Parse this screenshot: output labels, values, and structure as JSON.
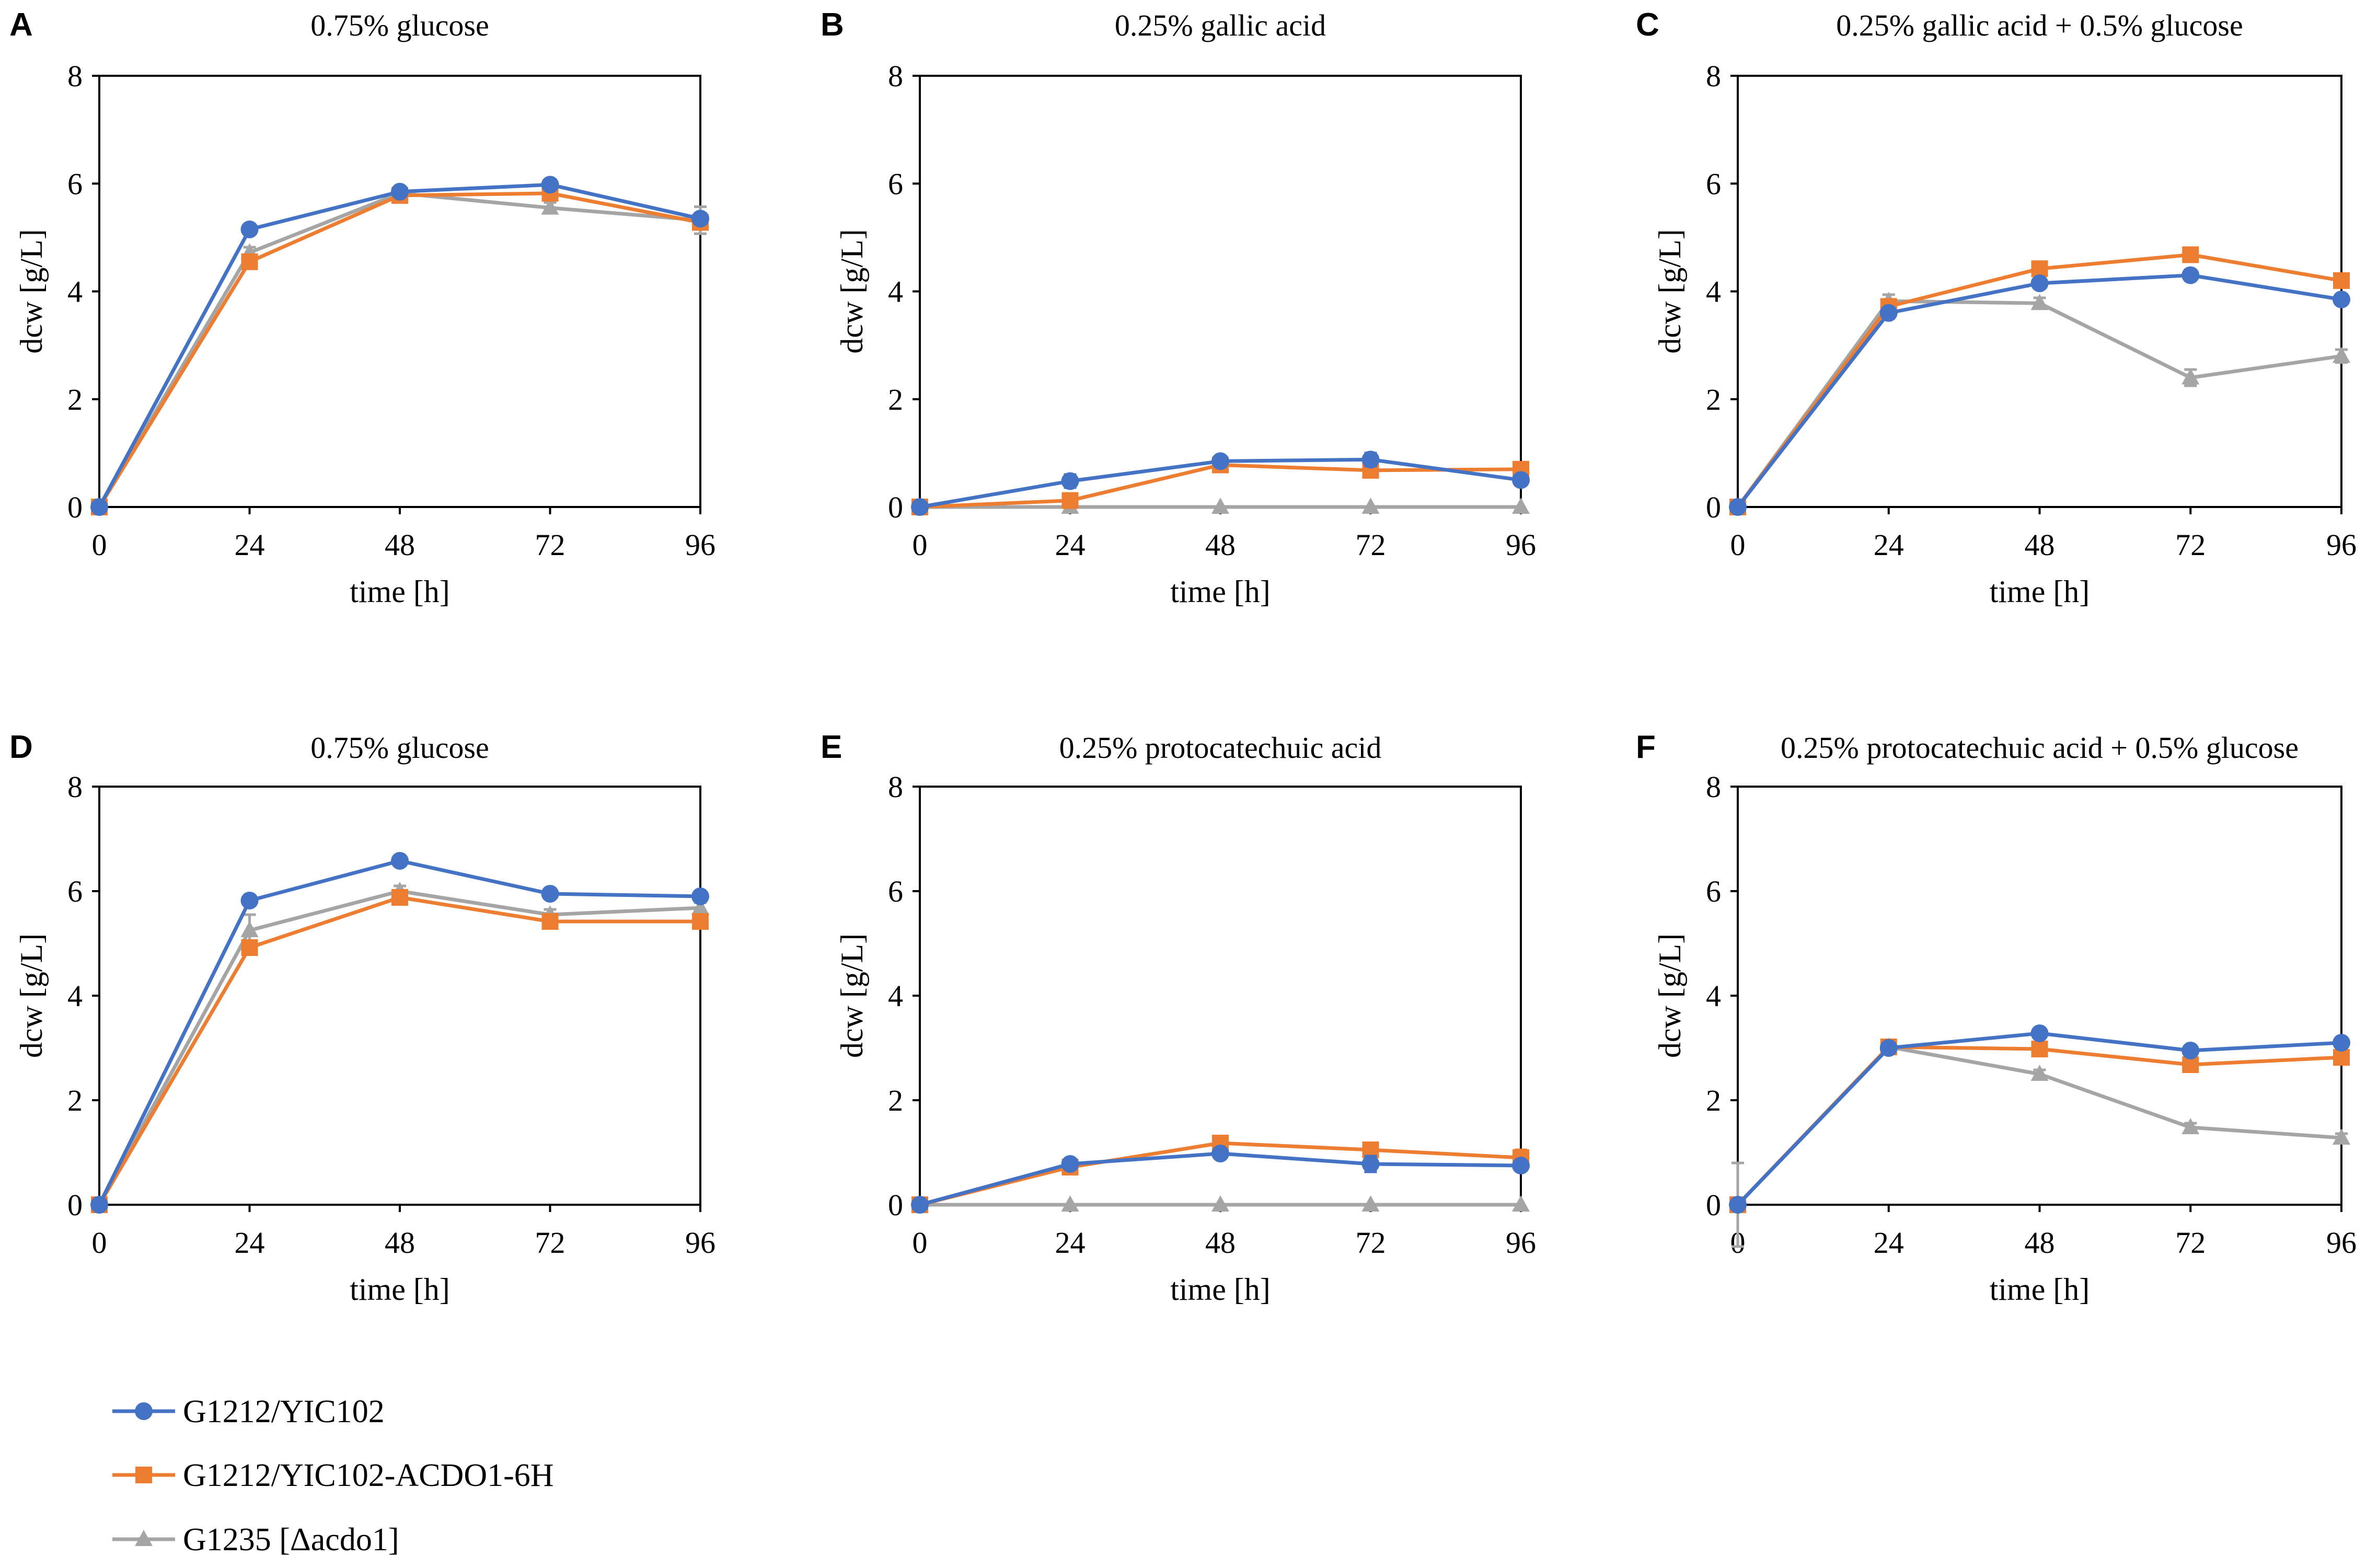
{
  "series_styles": [
    {
      "name": "G1212/YIC102",
      "color": "#4472C4",
      "marker": "circle"
    },
    {
      "name": "G1212/YIC102-ACDO1-6H",
      "color": "#ED7D31",
      "marker": "square"
    },
    {
      "name": "G1235 [Δacdo1]",
      "color": "#A5A5A5",
      "marker": "triangle"
    }
  ],
  "chart_data": [
    {
      "type": "line",
      "panel": "A",
      "title": "0.75% glucose",
      "xlabel": "time [h]",
      "ylabel": "dcw [g/L]",
      "x": [
        0,
        24,
        48,
        72,
        96
      ],
      "xticks": [
        0,
        24,
        48,
        72,
        96
      ],
      "ylim": [
        0,
        8
      ],
      "yticks": [
        0,
        2,
        4,
        6,
        8
      ],
      "series": [
        {
          "name": "G1212/YIC102",
          "values": [
            0,
            5.15,
            5.85,
            5.98,
            5.35
          ],
          "errors": [
            0,
            0.05,
            0.08,
            0.08,
            0.1
          ]
        },
        {
          "name": "G1212/YIC102-ACDO1-6H",
          "values": [
            0,
            4.55,
            5.78,
            5.82,
            5.28
          ],
          "errors": [
            0,
            0.08,
            0.08,
            0.12,
            0.1
          ]
        },
        {
          "name": "G1235 [Δacdo1]",
          "values": [
            0,
            4.72,
            5.82,
            5.55,
            5.32
          ],
          "errors": [
            0,
            0.1,
            0.08,
            0.1,
            0.25
          ]
        }
      ]
    },
    {
      "type": "line",
      "panel": "B",
      "title": "0.25% gallic acid",
      "xlabel": "time [h]",
      "ylabel": "dcw [g/L]",
      "x": [
        0,
        24,
        48,
        72,
        96
      ],
      "xticks": [
        0,
        24,
        48,
        72,
        96
      ],
      "ylim": [
        0,
        8
      ],
      "yticks": [
        0,
        2,
        4,
        6,
        8
      ],
      "series": [
        {
          "name": "G1212/YIC102",
          "values": [
            0,
            0.48,
            0.85,
            0.88,
            0.5
          ],
          "errors": [
            0,
            0.12,
            0.08,
            0.12,
            0.1
          ]
        },
        {
          "name": "G1212/YIC102-ACDO1-6H",
          "values": [
            0,
            0.12,
            0.78,
            0.68,
            0.7
          ],
          "errors": [
            0,
            0.05,
            0.08,
            0.08,
            0.08
          ]
        },
        {
          "name": "G1235 [Δacdo1]",
          "values": [
            0,
            0,
            0,
            0,
            0
          ],
          "errors": [
            0,
            0,
            0,
            0,
            0
          ]
        }
      ]
    },
    {
      "type": "line",
      "panel": "C",
      "title": "0.25% gallic acid + 0.5% glucose",
      "xlabel": "time [h]",
      "ylabel": "dcw [g/L]",
      "x": [
        0,
        24,
        48,
        72,
        96
      ],
      "xticks": [
        0,
        24,
        48,
        72,
        96
      ],
      "ylim": [
        0,
        8
      ],
      "yticks": [
        0,
        2,
        4,
        6,
        8
      ],
      "series": [
        {
          "name": "G1212/YIC102",
          "values": [
            0,
            3.6,
            4.15,
            4.3,
            3.85
          ],
          "errors": [
            0,
            0.1,
            0.08,
            0.1,
            0.08
          ]
        },
        {
          "name": "G1212/YIC102-ACDO1-6H",
          "values": [
            0,
            3.72,
            4.42,
            4.68,
            4.2
          ],
          "errors": [
            0,
            0.1,
            0.08,
            0.08,
            0.08
          ]
        },
        {
          "name": "G1235 [Δacdo1]",
          "values": [
            0,
            3.82,
            3.78,
            2.4,
            2.8
          ],
          "errors": [
            0,
            0.12,
            0.1,
            0.15,
            0.12
          ]
        }
      ]
    },
    {
      "type": "line",
      "panel": "D",
      "title": "0.75% glucose",
      "xlabel": "time [h]",
      "ylabel": "dcw [g/L]",
      "x": [
        0,
        24,
        48,
        72,
        96
      ],
      "xticks": [
        0,
        24,
        48,
        72,
        96
      ],
      "ylim": [
        0,
        8
      ],
      "yticks": [
        0,
        2,
        4,
        6,
        8
      ],
      "series": [
        {
          "name": "G1212/YIC102",
          "values": [
            0,
            5.82,
            6.58,
            5.95,
            5.9
          ],
          "errors": [
            0,
            0.1,
            0.08,
            0.08,
            0.08
          ]
        },
        {
          "name": "G1212/YIC102-ACDO1-6H",
          "values": [
            0,
            4.92,
            5.88,
            5.42,
            5.42
          ],
          "errors": [
            0,
            0.08,
            0.08,
            0.08,
            0.08
          ]
        },
        {
          "name": "G1235 [Δacdo1]",
          "values": [
            0,
            5.25,
            6.0,
            5.55,
            5.68
          ],
          "errors": [
            0,
            0.3,
            0.1,
            0.1,
            0.1
          ]
        }
      ]
    },
    {
      "type": "line",
      "panel": "E",
      "title": "0.25% protocatechuic acid",
      "xlabel": "time [h]",
      "ylabel": "dcw [g/L]",
      "x": [
        0,
        24,
        48,
        72,
        96
      ],
      "xticks": [
        0,
        24,
        48,
        72,
        96
      ],
      "ylim": [
        0,
        8
      ],
      "yticks": [
        0,
        2,
        4,
        6,
        8
      ],
      "series": [
        {
          "name": "G1212/YIC102",
          "values": [
            0,
            0.78,
            0.98,
            0.78,
            0.75
          ],
          "errors": [
            0,
            0.08,
            0.08,
            0.15,
            0.08
          ]
        },
        {
          "name": "G1212/YIC102-ACDO1-6H",
          "values": [
            0,
            0.72,
            1.18,
            1.05,
            0.9
          ],
          "errors": [
            0,
            0.08,
            0.08,
            0.12,
            0.15
          ]
        },
        {
          "name": "G1235 [Δacdo1]",
          "values": [
            0,
            0,
            0,
            0,
            0
          ],
          "errors": [
            0,
            0,
            0,
            0,
            0
          ]
        }
      ]
    },
    {
      "type": "line",
      "panel": "F",
      "title": "0.25% protocatechuic acid + 0.5% glucose",
      "xlabel": "time [h]",
      "ylabel": "dcw [g/L]",
      "x": [
        0,
        24,
        48,
        72,
        96
      ],
      "xticks": [
        0,
        24,
        48,
        72,
        96
      ],
      "ylim": [
        0,
        8
      ],
      "yticks": [
        0,
        2,
        4,
        6,
        8
      ],
      "series": [
        {
          "name": "G1212/YIC102",
          "values": [
            0,
            3.0,
            3.28,
            2.95,
            3.1
          ],
          "errors": [
            0,
            0.08,
            0.08,
            0.08,
            0.08
          ]
        },
        {
          "name": "G1212/YIC102-ACDO1-6H",
          "values": [
            0,
            3.02,
            2.98,
            2.68,
            2.82
          ],
          "errors": [
            0,
            0.08,
            0.08,
            0.1,
            0.1
          ]
        },
        {
          "name": "G1235 [Δacdo1]",
          "values": [
            0,
            3.02,
            2.5,
            1.48,
            1.28
          ],
          "errors": [
            0.8,
            0.08,
            0.08,
            0.08,
            0.08
          ]
        }
      ]
    }
  ]
}
